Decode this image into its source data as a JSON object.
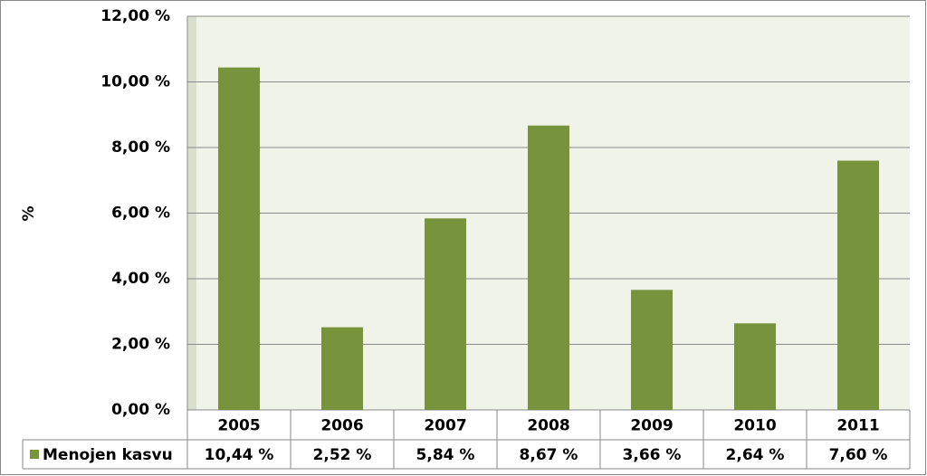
{
  "chart_data": {
    "type": "bar",
    "ylabel": "%",
    "categories": [
      "2005",
      "2006",
      "2007",
      "2008",
      "2009",
      "2010",
      "2011"
    ],
    "series": [
      {
        "name": "Menojen kasvu",
        "color": "#77933c",
        "values": [
          10.44,
          2.52,
          5.84,
          8.67,
          3.66,
          2.64,
          7.6
        ],
        "value_labels": [
          "10,44 %",
          "2,52 %",
          "5,84 %",
          "8,67 %",
          "3,66 %",
          "2,64 %",
          "7,60 %"
        ]
      }
    ],
    "ylim": [
      0,
      12
    ],
    "yticks": [
      {
        "value": 0,
        "label": "0,00 %"
      },
      {
        "value": 2,
        "label": "2,00 %"
      },
      {
        "value": 4,
        "label": "4,00 %"
      },
      {
        "value": 6,
        "label": "6,00 %"
      },
      {
        "value": 8,
        "label": "8,00 %"
      },
      {
        "value": 10,
        "label": "10,00 %"
      },
      {
        "value": 12,
        "label": "12,00 %"
      }
    ],
    "grid": true
  }
}
